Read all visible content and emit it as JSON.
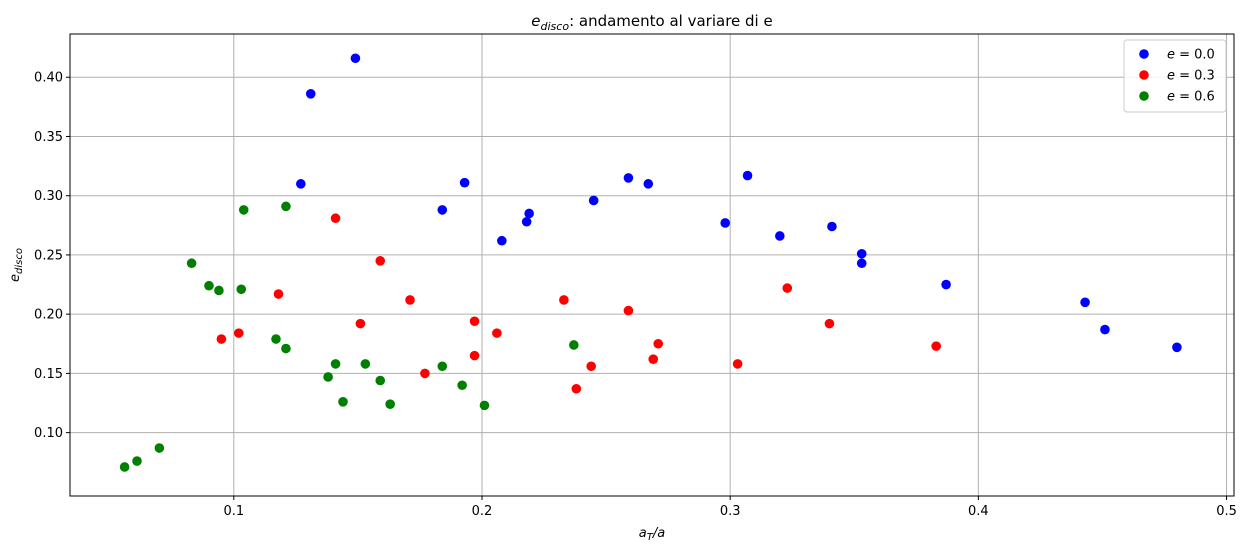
{
  "chart_data": {
    "type": "scatter",
    "title_main": "e",
    "title_sub": "disco",
    "title_rest": ": andamento al variare di e",
    "xlabel_main": "a",
    "xlabel_sub": "T",
    "xlabel_rest": "/a",
    "ylabel_main": "e",
    "ylabel_sub": "disco",
    "xlim": [
      0.034,
      0.503
    ],
    "ylim": [
      0.0465,
      0.4365
    ],
    "xticks": [
      0.1,
      0.2,
      0.3,
      0.4,
      0.5
    ],
    "xtick_labels": [
      "0.1",
      "0.2",
      "0.3",
      "0.4",
      "0.5"
    ],
    "yticks": [
      0.1,
      0.15,
      0.2,
      0.25,
      0.3,
      0.35,
      0.4
    ],
    "ytick_labels": [
      "0.10",
      "0.15",
      "0.20",
      "0.25",
      "0.30",
      "0.35",
      "0.40"
    ],
    "grid": true,
    "legend_position": "top-right",
    "series": [
      {
        "legend_var": "e",
        "legend_rest": " = 0.0",
        "color": "#0000ff",
        "points": [
          [
            0.149,
            0.416
          ],
          [
            0.131,
            0.386
          ],
          [
            0.127,
            0.31
          ],
          [
            0.193,
            0.311
          ],
          [
            0.184,
            0.288
          ],
          [
            0.208,
            0.262
          ],
          [
            0.219,
            0.285
          ],
          [
            0.218,
            0.278
          ],
          [
            0.245,
            0.296
          ],
          [
            0.259,
            0.315
          ],
          [
            0.267,
            0.31
          ],
          [
            0.307,
            0.317
          ],
          [
            0.298,
            0.277
          ],
          [
            0.32,
            0.266
          ],
          [
            0.341,
            0.274
          ],
          [
            0.353,
            0.251
          ],
          [
            0.353,
            0.243
          ],
          [
            0.387,
            0.225
          ],
          [
            0.443,
            0.21
          ],
          [
            0.451,
            0.187
          ],
          [
            0.48,
            0.172
          ]
        ]
      },
      {
        "legend_var": "e",
        "legend_rest": " = 0.3",
        "color": "#ff0000",
        "points": [
          [
            0.141,
            0.281
          ],
          [
            0.159,
            0.245
          ],
          [
            0.118,
            0.217
          ],
          [
            0.171,
            0.212
          ],
          [
            0.095,
            0.179
          ],
          [
            0.102,
            0.184
          ],
          [
            0.151,
            0.192
          ],
          [
            0.177,
            0.15
          ],
          [
            0.197,
            0.194
          ],
          [
            0.197,
            0.165
          ],
          [
            0.206,
            0.184
          ],
          [
            0.233,
            0.212
          ],
          [
            0.238,
            0.137
          ],
          [
            0.244,
            0.156
          ],
          [
            0.259,
            0.203
          ],
          [
            0.269,
            0.162
          ],
          [
            0.271,
            0.175
          ],
          [
            0.303,
            0.158
          ],
          [
            0.323,
            0.222
          ],
          [
            0.34,
            0.192
          ],
          [
            0.383,
            0.173
          ]
        ]
      },
      {
        "legend_var": "e",
        "legend_rest": " = 0.6",
        "color": "#008000",
        "points": [
          [
            0.104,
            0.288
          ],
          [
            0.121,
            0.291
          ],
          [
            0.083,
            0.243
          ],
          [
            0.09,
            0.224
          ],
          [
            0.094,
            0.22
          ],
          [
            0.103,
            0.221
          ],
          [
            0.117,
            0.179
          ],
          [
            0.121,
            0.171
          ],
          [
            0.138,
            0.147
          ],
          [
            0.141,
            0.158
          ],
          [
            0.144,
            0.126
          ],
          [
            0.153,
            0.158
          ],
          [
            0.159,
            0.144
          ],
          [
            0.163,
            0.124
          ],
          [
            0.184,
            0.156
          ],
          [
            0.192,
            0.14
          ],
          [
            0.201,
            0.123
          ],
          [
            0.237,
            0.174
          ],
          [
            0.056,
            0.071
          ],
          [
            0.061,
            0.076
          ],
          [
            0.07,
            0.087
          ]
        ]
      }
    ]
  }
}
